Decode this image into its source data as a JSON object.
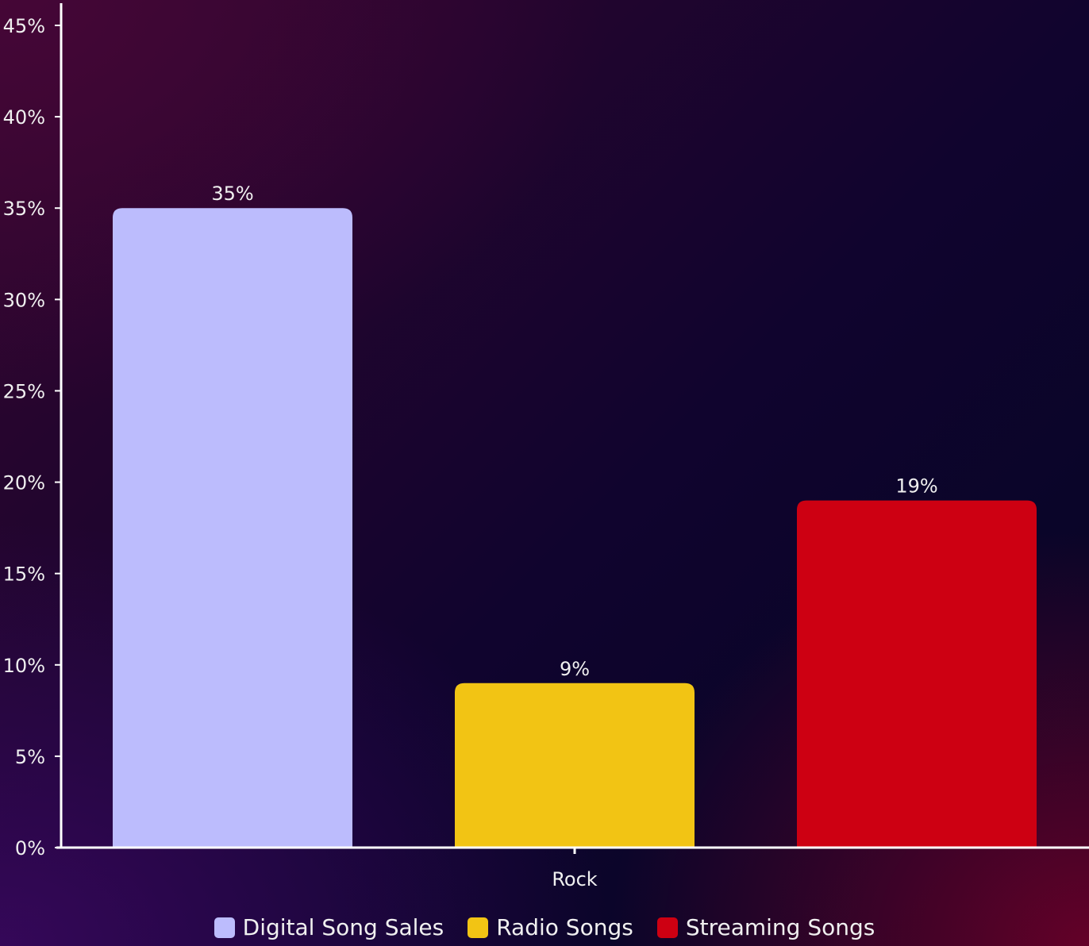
{
  "chart_data": {
    "type": "bar",
    "categories": [
      "Rock"
    ],
    "series": [
      {
        "name": "Digital Song Sales",
        "values": [
          35
        ],
        "color": "#bcbcfd"
      },
      {
        "name": "Radio Songs",
        "values": [
          9
        ],
        "color": "#f2c414"
      },
      {
        "name": "Streaming Songs",
        "values": [
          19
        ],
        "color": "#cd0012"
      }
    ],
    "data_labels": [
      "35%",
      "9%",
      "19%"
    ],
    "y_ticks": [
      0,
      5,
      10,
      15,
      20,
      25,
      30,
      35,
      40,
      45
    ],
    "y_tick_labels": [
      "0%",
      "5%",
      "10%",
      "15%",
      "20%",
      "25%",
      "30%",
      "35%",
      "40%",
      "45%"
    ],
    "ylim": [
      0,
      45
    ],
    "grid": false,
    "legend_position": "bottom",
    "axis_color": "#ffffff"
  }
}
